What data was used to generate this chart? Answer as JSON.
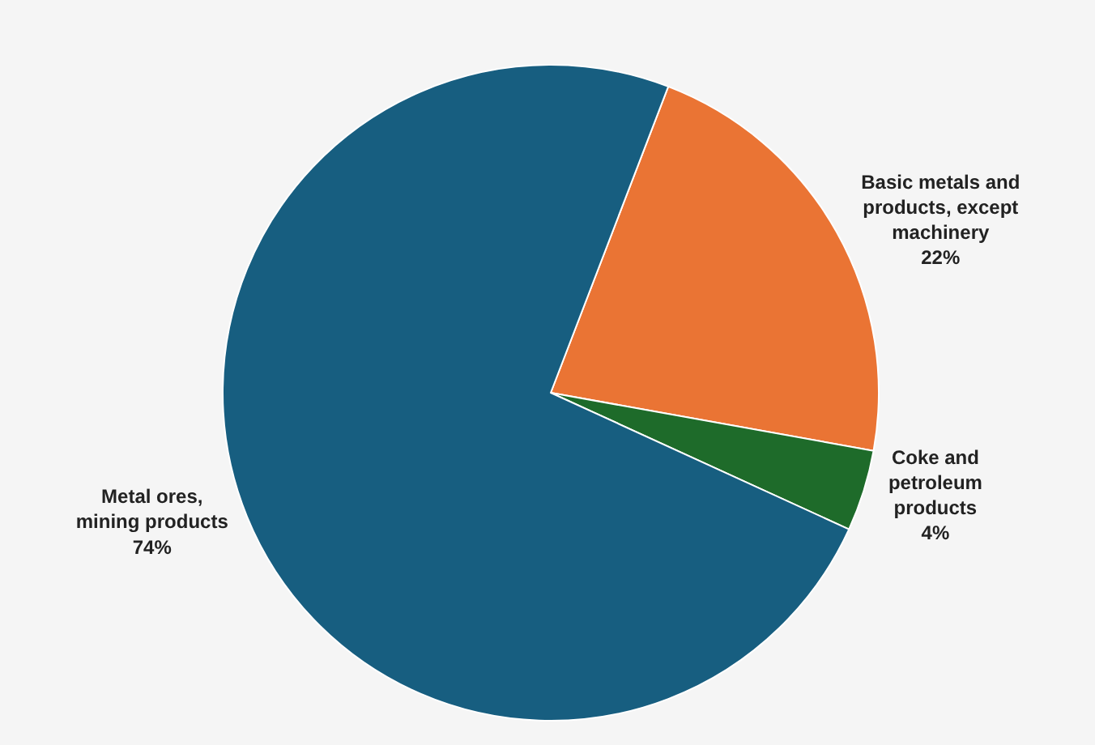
{
  "chart_data": {
    "type": "pie",
    "categories": [
      "Basic metals and products, except machinery",
      "Coke and petroleum products",
      "Metal ores, mining products"
    ],
    "values": [
      22,
      4,
      74
    ],
    "colors": [
      "#ea7434",
      "#1e6b2a",
      "#175e80"
    ],
    "value_labels": [
      "22%",
      "4%",
      "74%"
    ],
    "legend": false
  }
}
